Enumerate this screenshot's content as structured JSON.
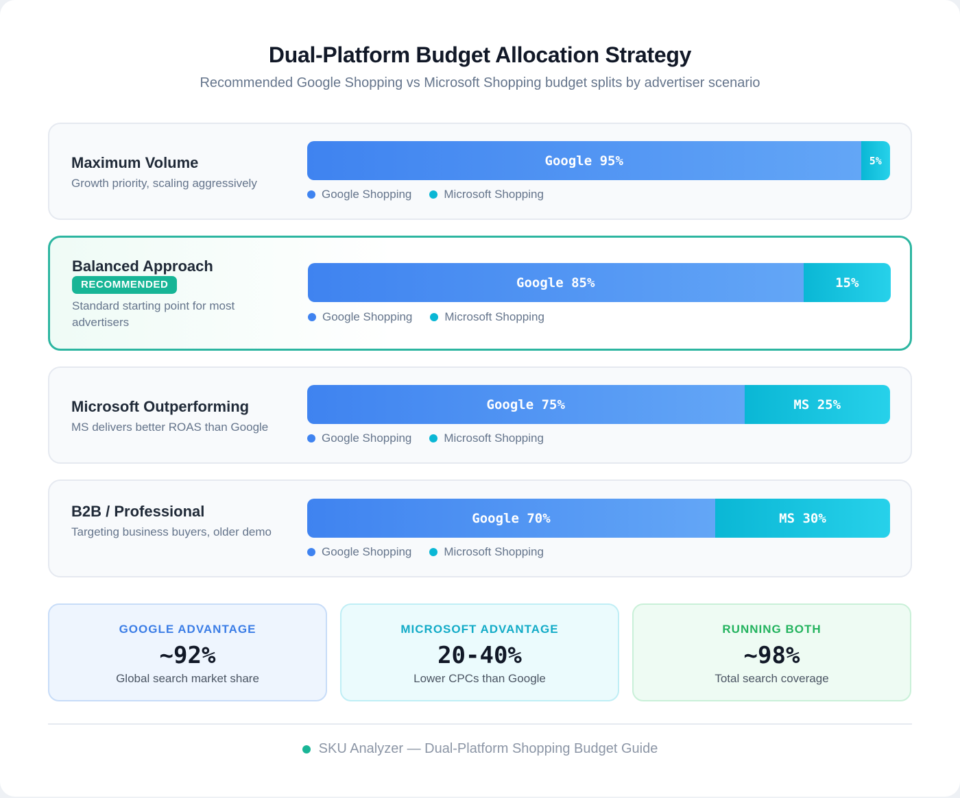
{
  "title": "Dual-Platform Budget Allocation Strategy",
  "subtitle": "Recommended Google Shopping vs Microsoft Shopping budget splits by advertiser scenario",
  "legend": {
    "google": "Google Shopping",
    "microsoft": "Microsoft Shopping"
  },
  "colors": {
    "google": "#3f83f0",
    "microsoft": "#0ab7d5",
    "recommended": "#17b596"
  },
  "chart_data": {
    "type": "bar",
    "orientation": "horizontal-stacked-100",
    "categories": [
      "Maximum Volume",
      "Balanced Approach",
      "Microsoft Outperforming",
      "B2B / Professional"
    ],
    "series": [
      {
        "name": "Google Shopping",
        "values": [
          95,
          85,
          75,
          70
        ]
      },
      {
        "name": "Microsoft Shopping",
        "values": [
          5,
          15,
          25,
          30
        ]
      }
    ],
    "unit": "%"
  },
  "scenarios": [
    {
      "name": "Maximum Volume",
      "desc": "Growth priority, scaling aggressively",
      "google_label": "Google 95%",
      "ms_label": "5%",
      "recommended": false
    },
    {
      "name": "Balanced Approach",
      "badge": "RECOMMENDED",
      "desc": "Standard starting point for most advertisers",
      "google_label": "Google 85%",
      "ms_label": "15%",
      "recommended": true
    },
    {
      "name": "Microsoft Outperforming",
      "desc": "MS delivers better ROAS than Google",
      "google_label": "Google 75%",
      "ms_label": "MS 25%",
      "recommended": false
    },
    {
      "name": "B2B / Professional",
      "desc": "Targeting business buyers, older demo",
      "google_label": "Google 70%",
      "ms_label": "MS 30%",
      "recommended": false
    }
  ],
  "stats": [
    {
      "label": "GOOGLE ADVANTAGE",
      "value": "~92%",
      "note": "Global search market share"
    },
    {
      "label": "MICROSOFT ADVANTAGE",
      "value": "20-40%",
      "note": "Lower CPCs than Google"
    },
    {
      "label": "RUNNING BOTH",
      "value": "~98%",
      "note": "Total search coverage"
    }
  ],
  "footer": "SKU Analyzer — Dual-Platform Shopping Budget Guide"
}
